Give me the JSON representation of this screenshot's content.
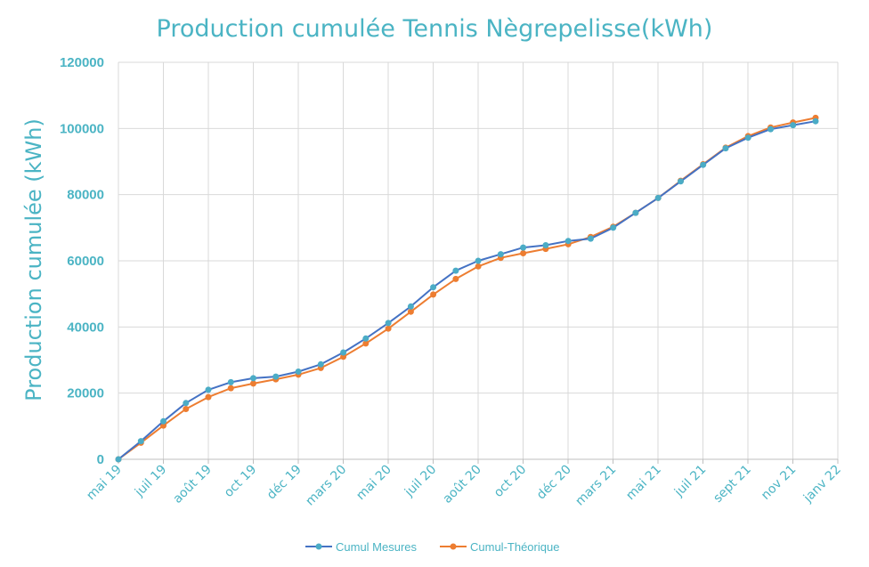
{
  "chart_data": {
    "type": "line",
    "title": "Production cumulée Tennis Nègrepelisse(kWh)",
    "ylabel": "Production cumulée (kWh)",
    "xlabel": "",
    "ylim": [
      0,
      120000
    ],
    "yticks": [
      "0",
      "20000",
      "40000",
      "60000",
      "80000",
      "100000",
      "120000"
    ],
    "x_tick_labels": [
      "mai 19",
      "juil 19",
      "août 19",
      "oct 19",
      "déc 19",
      "mars 20",
      "mai 20",
      "juil 20",
      "août 20",
      "oct 20",
      "déc 20",
      "mars 21",
      "mai 21",
      "juil 21",
      "sept 21",
      "nov 21",
      "janv 22"
    ],
    "point_count": 32,
    "grid": true,
    "legend_position": "bottom",
    "series": [
      {
        "name": "Cumul Mesures",
        "color": "#4472c4",
        "marker_color": "#4bacc6",
        "values": [
          0,
          5500,
          11500,
          17000,
          21000,
          23300,
          24500,
          25000,
          26500,
          28700,
          32300,
          36500,
          41200,
          46200,
          52000,
          57000,
          60000,
          62000,
          64000,
          64700,
          66000,
          66700,
          70000,
          74500,
          79000,
          84000,
          89000,
          94000,
          97200,
          99800,
          101000,
          102200
        ]
      },
      {
        "name": "Cumul-Théorique",
        "color": "#ed7d31",
        "marker_color": "#ed7d31",
        "values": [
          0,
          5000,
          10200,
          15200,
          18800,
          21500,
          22900,
          24200,
          25600,
          27600,
          31000,
          35000,
          39500,
          44600,
          49800,
          54500,
          58300,
          60900,
          62300,
          63600,
          65000,
          67200,
          70300,
          74500,
          79000,
          84200,
          89200,
          94200,
          97700,
          100300,
          101800,
          103200
        ]
      }
    ]
  }
}
